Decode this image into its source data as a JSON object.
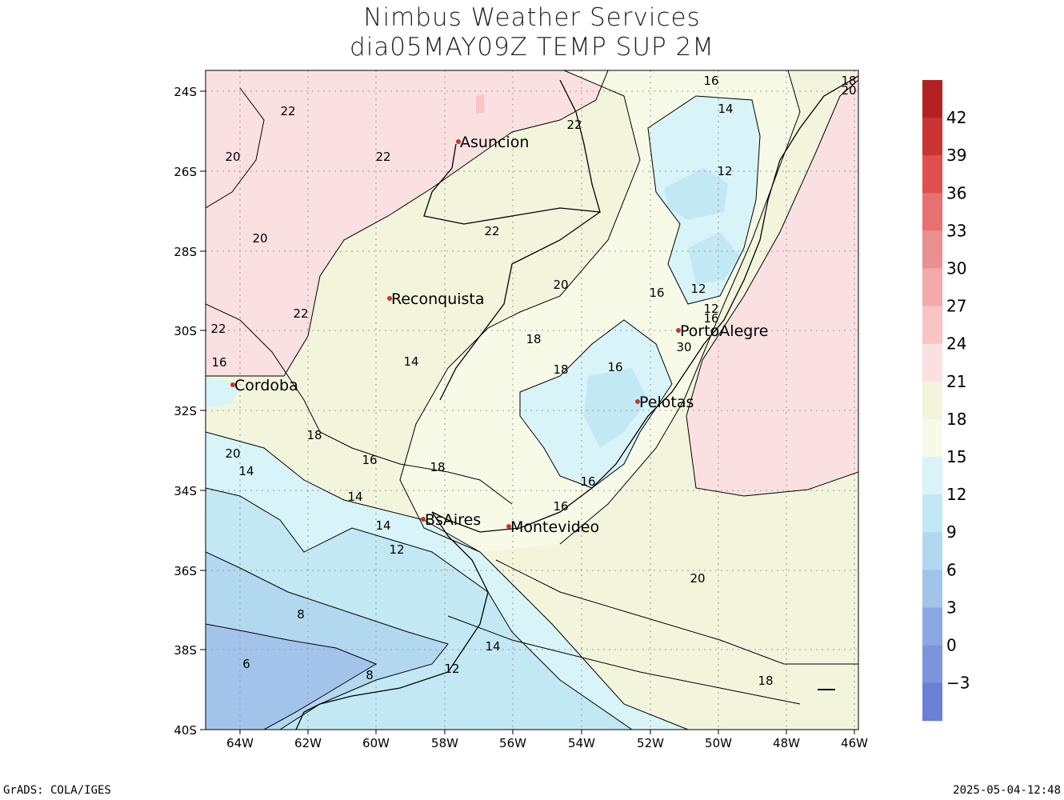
{
  "title": {
    "line1": "Nimbus Weather Services",
    "line2": "dia05MAY09Z TEMP SUP 2M"
  },
  "axes": {
    "lat_labels": [
      "24S",
      "26S",
      "28S",
      "30S",
      "32S",
      "34S",
      "36S",
      "38S",
      "40S"
    ],
    "lon_labels": [
      "64W",
      "62W",
      "60W",
      "58W",
      "56W",
      "54W",
      "52W",
      "50W",
      "48W",
      "46W"
    ]
  },
  "colorbar": {
    "labels": [
      "42",
      "39",
      "36",
      "33",
      "30",
      "27",
      "24",
      "21",
      "18",
      "15",
      "12",
      "9",
      "6",
      "3",
      "0",
      "−3"
    ],
    "colors": [
      "#b22222",
      "#cc3333",
      "#e05050",
      "#e87070",
      "#e99090",
      "#f4aaaa",
      "#f8c4c4",
      "#fbe0e2",
      "#f2f5dc",
      "#f8fae8",
      "#d8f4f8",
      "#c2e8f4",
      "#b2d8f0",
      "#a3c4ea",
      "#8ca8e4",
      "#7c94dc",
      "#6b7fd5"
    ]
  },
  "cities": [
    {
      "name": "Asuncion",
      "icon": "city-dot-icon"
    },
    {
      "name": "Reconquista",
      "icon": "city-dot-icon"
    },
    {
      "name": "Cordoba",
      "icon": "city-dot-icon"
    },
    {
      "name": "PortoAlegre",
      "icon": "city-dot-icon"
    },
    {
      "name": "Pelotas",
      "icon": "city-dot-icon"
    },
    {
      "name": "BsAires",
      "icon": "city-dot-icon"
    },
    {
      "name": "Montevideo",
      "icon": "city-dot-icon"
    }
  ],
  "contour_labels": [
    "16",
    "18",
    "20",
    "14",
    "22",
    "22",
    "22",
    "20",
    "12",
    "22",
    "20",
    "12",
    "20",
    "16",
    "22",
    "12",
    "16",
    "22",
    "18",
    "16",
    "14",
    "30",
    "18",
    "16",
    "18",
    "20",
    "16",
    "18",
    "14",
    "16",
    "14",
    "16",
    "14",
    "12",
    "20",
    "8",
    "14",
    "6",
    "8",
    "12",
    "18"
  ],
  "footer": {
    "left": "GrADS: COLA/IGES",
    "right": "2025-05-04-12:48"
  }
}
